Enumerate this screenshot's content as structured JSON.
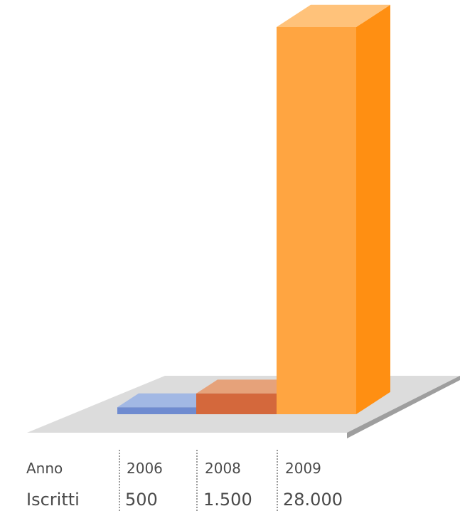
{
  "chart_data": {
    "type": "bar",
    "categories": [
      "2006",
      "2008",
      "2009"
    ],
    "values": [
      500,
      1500,
      28000
    ],
    "value_labels": [
      "500",
      "1.500",
      "28.000"
    ],
    "row_labels": {
      "category": "Anno",
      "value": "Iscritti"
    },
    "ylim": [
      0,
      28000
    ],
    "grid": false,
    "legend": "none",
    "colors": {
      "bars": [
        {
          "front": "#6f8bd0",
          "top": "#a2b8e4",
          "side": "#5a76be"
        },
        {
          "front": "#d4683c",
          "top": "#e6a27a",
          "side": "#b9552f"
        },
        {
          "front": "#ffa541",
          "top": "#ffc27a",
          "side": "#ff8f12"
        }
      ],
      "floor_top": "#dcdcdc",
      "floor_edge": "#9e9e9e",
      "text": "#4a4a4a",
      "separator": "#9a9a9a"
    }
  }
}
